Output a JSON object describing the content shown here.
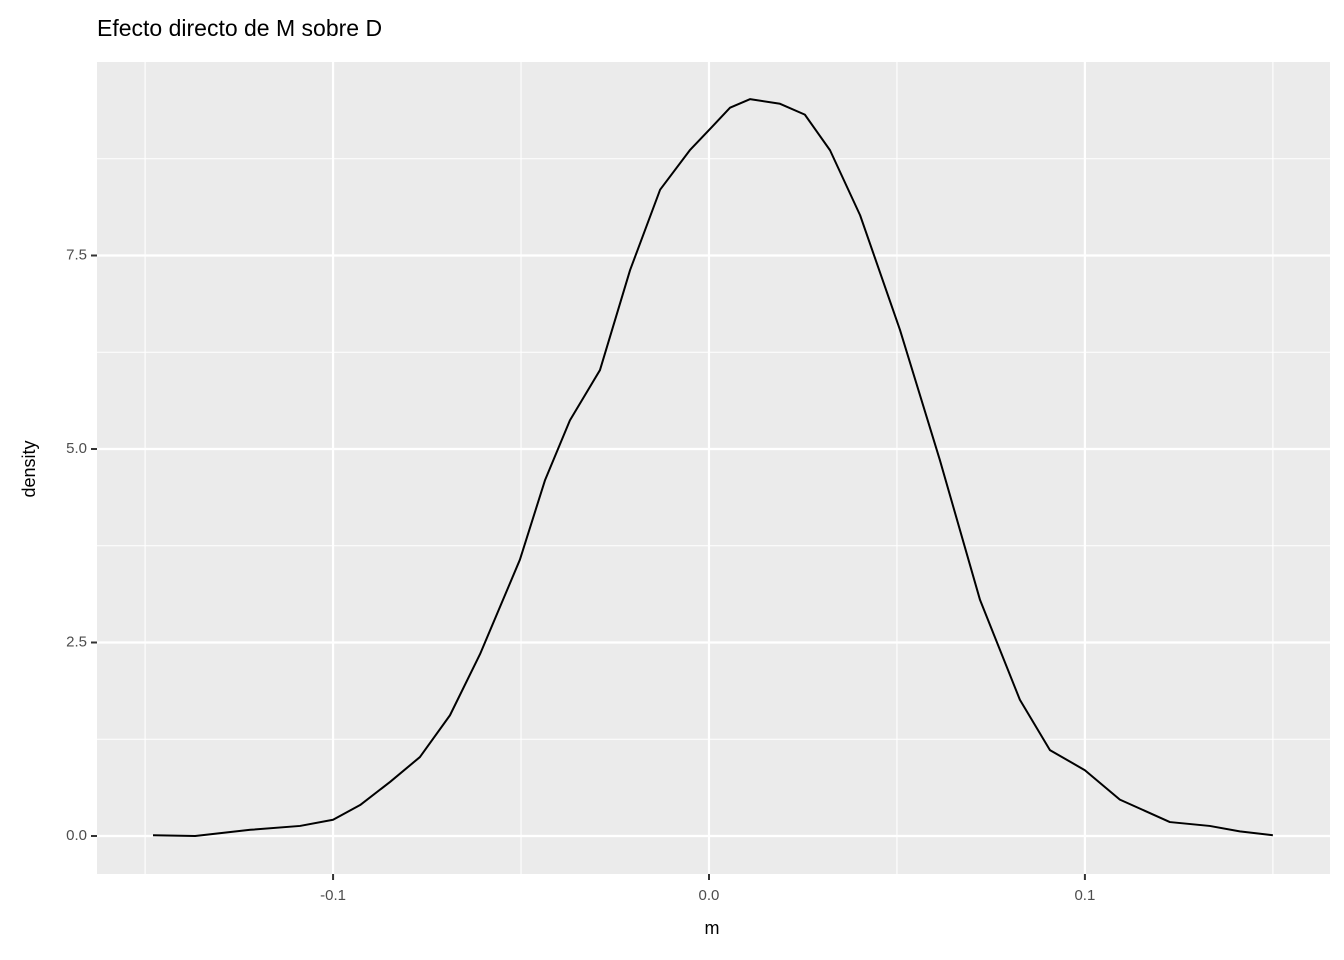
{
  "chart_data": {
    "type": "line",
    "title": "Efecto directo de M sobre D",
    "x_label": "m",
    "y_label": "density",
    "x": [
      -0.1479,
      -0.1367,
      -0.122,
      -0.1088,
      -0.1,
      -0.0928,
      -0.0848,
      -0.0769,
      -0.0689,
      -0.0609,
      -0.0503,
      -0.0436,
      -0.037,
      -0.029,
      -0.021,
      -0.013,
      -0.0051,
      0,
      0.0056,
      0.0109,
      0.0189,
      0.0255,
      0.0322,
      0.0402,
      0.0508,
      0.0614,
      0.0721,
      0.0827,
      0.0907,
      0.1,
      0.1093,
      0.1226,
      0.1332,
      0.1412,
      0.15
    ],
    "series": [
      {
        "name": "density",
        "color": "#000000",
        "values": [
          0.01,
          0.0,
          0.08,
          0.13,
          0.21,
          0.4,
          0.7,
          1.02,
          1.56,
          2.35,
          3.57,
          4.6,
          5.37,
          6.02,
          7.31,
          8.35,
          8.86,
          9.12,
          9.41,
          9.52,
          9.46,
          9.32,
          8.86,
          8.02,
          6.54,
          4.86,
          3.05,
          1.76,
          1.11,
          0.85,
          0.47,
          0.18,
          0.13,
          0.06,
          0.01
        ]
      }
    ],
    "xlim": [
      -0.1628,
      0.1652
    ],
    "ylim": [
      -0.491,
      10.0
    ],
    "xticks": [
      {
        "value": -0.1,
        "label": "-0.1"
      },
      {
        "value": 0,
        "label": "0.0"
      },
      {
        "value": 0.1,
        "label": "0.1"
      }
    ],
    "yticks": [
      {
        "value": 0,
        "label": "0.0"
      },
      2.5,
      {
        "value": 5,
        "label": "5.0"
      },
      7.5
    ],
    "grid": true
  }
}
